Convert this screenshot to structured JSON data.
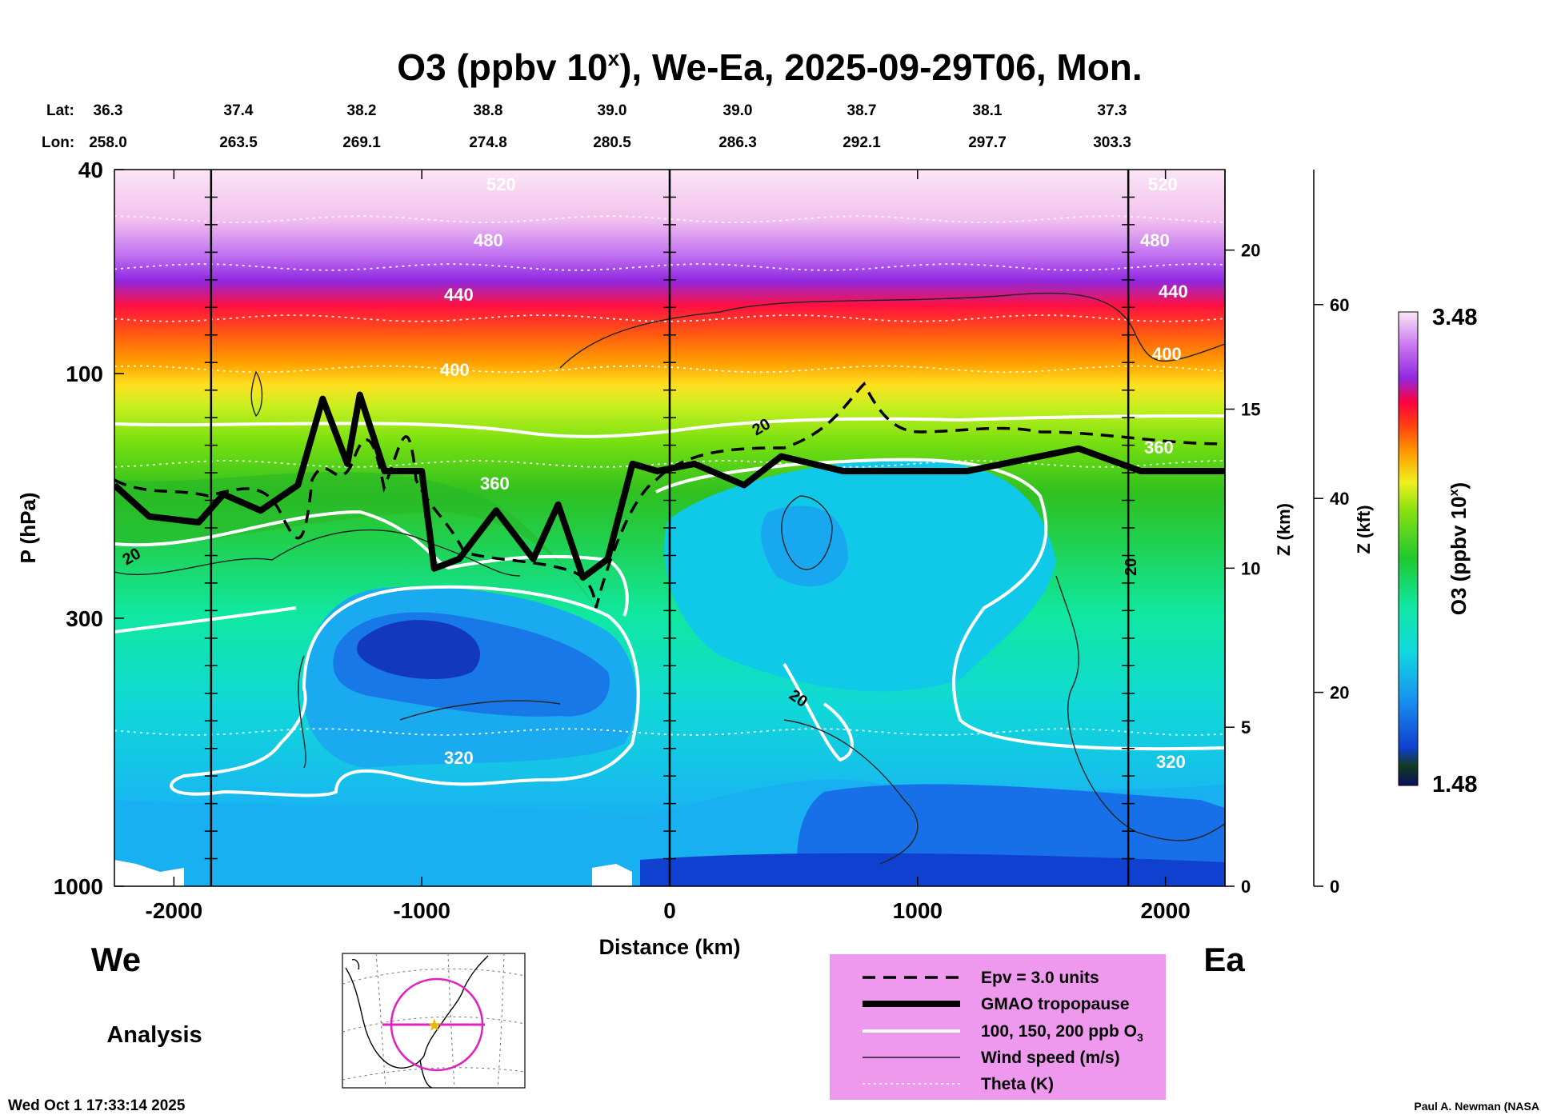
{
  "chart_data": {
    "type": "contour-cross-section",
    "title": "O3 (ppbv 10",
    "title_sup": "x",
    "title_rest": "), We-Ea, 2025-09-29T06, Mon.",
    "lat_label": "Lat:",
    "lon_label": "Lon:",
    "lats": [
      "36.3",
      "37.4",
      "38.2",
      "38.8",
      "39.0",
      "39.0",
      "38.7",
      "38.1",
      "37.3"
    ],
    "lons": [
      "258.0",
      "263.5",
      "269.1",
      "274.8",
      "280.5",
      "286.3",
      "292.1",
      "297.7",
      "303.3"
    ],
    "xlabel": "Distance (km)",
    "xlim": [
      -2240,
      2240
    ],
    "x_ticks": [
      -2000,
      -1000,
      0,
      1000,
      2000
    ],
    "x_tick_labels": [
      "-2000",
      "-1000",
      "0",
      "1000",
      "2000"
    ],
    "ylabel": "P (hPa)",
    "ylim": [
      1000,
      40
    ],
    "y_scale": "log",
    "y_ticks": [
      40,
      100,
      300,
      1000
    ],
    "y_tick_labels": [
      "40",
      "100",
      "300",
      "1000"
    ],
    "z_km_label": "Z (km)",
    "z_km_ticks": [
      0,
      5,
      10,
      15,
      20
    ],
    "z_km_tick_labels": [
      "0",
      "5",
      "10",
      "15",
      "20"
    ],
    "z_kft_label": "Z (kft)",
    "z_kft_ticks": [
      0,
      20,
      40,
      60
    ],
    "z_kft_tick_labels": [
      "0",
      "20",
      "40",
      "60"
    ],
    "vertical_markers_km": [
      -1850,
      0,
      1850
    ],
    "left_end_label": "We",
    "right_end_label": "Ea",
    "mode_label": "Analysis",
    "theta_labels": [
      "520",
      "480",
      "440",
      "400",
      "360",
      "320"
    ],
    "theta_levels": [
      {
        "value": 520,
        "p": 50
      },
      {
        "value": 480,
        "p": 62
      },
      {
        "value": 440,
        "p": 78
      },
      {
        "value": 400,
        "p": 98
      },
      {
        "value": 360,
        "p": 150
      },
      {
        "value": 320,
        "p": 500
      }
    ],
    "wind_labels": [
      "20",
      "20",
      "20",
      "20"
    ],
    "tropopause_p": [
      [
        -2240,
        165
      ],
      [
        -2100,
        190
      ],
      [
        -1900,
        195
      ],
      [
        -1800,
        172
      ],
      [
        -1650,
        185
      ],
      [
        -1500,
        165
      ],
      [
        -1400,
        112
      ],
      [
        -1300,
        150
      ],
      [
        -1250,
        110
      ],
      [
        -1150,
        155
      ],
      [
        -1000,
        155
      ],
      [
        -950,
        240
      ],
      [
        -850,
        230
      ],
      [
        -700,
        185
      ],
      [
        -550,
        230
      ],
      [
        -450,
        180
      ],
      [
        -350,
        250
      ],
      [
        -250,
        230
      ],
      [
        -150,
        150
      ],
      [
        -50,
        155
      ],
      [
        100,
        150
      ],
      [
        300,
        165
      ],
      [
        450,
        145
      ],
      [
        700,
        155
      ],
      [
        1200,
        155
      ],
      [
        1650,
        140
      ],
      [
        1900,
        155
      ],
      [
        2240,
        155
      ]
    ],
    "colorbar": {
      "label": "O3 (ppbv 10",
      "label_sup": "x",
      "label_rest": ")",
      "min_label": "1.48",
      "max_label": "3.48",
      "min": 1.48,
      "max": 3.48
    },
    "legend": [
      {
        "label": "Epv = 3.0 units",
        "style": "dashed"
      },
      {
        "label": "GMAO tropopause",
        "style": "thick"
      },
      {
        "label": "100, 150, 200 ppb O",
        "sub": "3",
        "style": "white"
      },
      {
        "label": "Wind speed (m/s)",
        "style": "thin"
      },
      {
        "label": "Theta (K)",
        "style": "dotted"
      }
    ],
    "legend_bg": "#ee99ee",
    "timestamp": "Wed Oct  1 17:33:14 2025",
    "credit": "Paul A. Newman (NASA"
  }
}
